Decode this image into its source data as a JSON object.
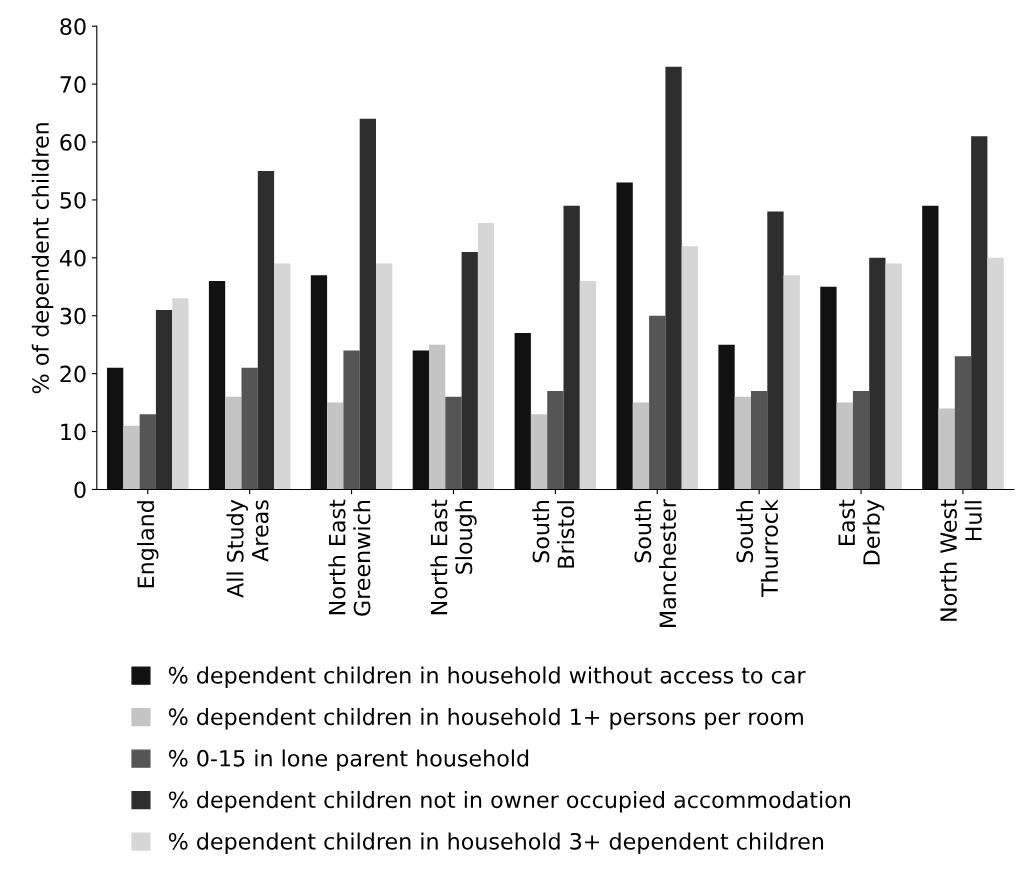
{
  "chart_data": {
    "type": "bar",
    "ylabel": "% of dependent children",
    "categories": [
      "England",
      "All Study\nAreas",
      "North East\nGreenwich",
      "North East\nSlough",
      "South\nBristol",
      "South\nManchester",
      "South\nThurrock",
      "East\nDerby",
      "North West\nHull"
    ],
    "series": [
      {
        "name": "% dependent children in household without access to car",
        "color": "#111111",
        "values": [
          21,
          36,
          37,
          24,
          27,
          53,
          25,
          35,
          49
        ]
      },
      {
        "name": "% dependent children in household 1+ persons per room",
        "color": "#c4c4c4",
        "values": [
          11,
          16,
          15,
          25,
          13,
          15,
          16,
          15,
          14
        ]
      },
      {
        "name": "% 0-15 in lone parent household",
        "color": "#555555",
        "values": [
          13,
          21,
          24,
          16,
          17,
          30,
          17,
          17,
          23
        ]
      },
      {
        "name": "% dependent children not in owner occupied accommodation",
        "color": "#2e2e2e",
        "values": [
          31,
          55,
          64,
          41,
          49,
          73,
          48,
          40,
          61
        ]
      },
      {
        "name": "% dependent children in household 3+ dependent children",
        "color": "#d6d6d6",
        "values": [
          33,
          39,
          39,
          46,
          36,
          42,
          37,
          39,
          40
        ]
      }
    ],
    "ylim": [
      0,
      80
    ],
    "yticks": [
      0,
      10,
      20,
      30,
      40,
      50,
      60,
      70,
      80
    ],
    "grid": false,
    "legend": "bottom"
  }
}
